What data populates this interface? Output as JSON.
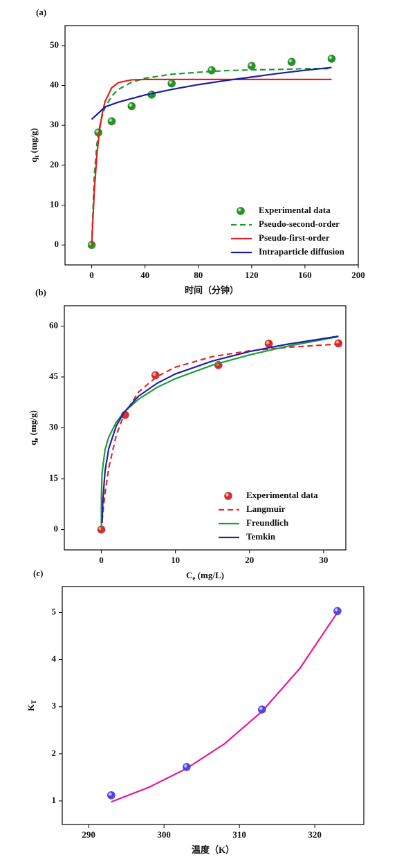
{
  "chart_data": [
    {
      "type": "line",
      "panel_label": "(a)",
      "xlabel": "时间（分钟）",
      "ylabel": {
        "main": "q",
        "sub": "t",
        "rest": " (mg/g)"
      },
      "xlim": [
        -20,
        200
      ],
      "xticks": [
        0,
        40,
        80,
        120,
        160,
        200
      ],
      "ylim": [
        -5,
        55
      ],
      "yticks": [
        0,
        10,
        20,
        30,
        40,
        50
      ],
      "legend": "lower right",
      "series": [
        {
          "name": "Experimental data",
          "color": "#1a8a1a",
          "style": "markers",
          "x": [
            0,
            5,
            15,
            30,
            45,
            60,
            90,
            120,
            150,
            180
          ],
          "values": [
            0,
            28.2,
            31,
            34.8,
            37.7,
            40.5,
            43.8,
            44.9,
            45.9,
            46.7
          ]
        },
        {
          "name": "Pseudo-second-order",
          "color": "#1c9a2a",
          "style": "dashed",
          "x": [
            0,
            2,
            4,
            6,
            8,
            10,
            15,
            20,
            30,
            40,
            60,
            80,
            100,
            120,
            140,
            160,
            180
          ],
          "values": [
            0,
            17.7,
            25.4,
            29.7,
            32.5,
            34.4,
            37.3,
            39.0,
            40.8,
            41.8,
            42.8,
            43.3,
            43.7,
            43.9,
            44.0,
            44.2,
            44.2
          ]
        },
        {
          "name": "Pseudo-first-order",
          "color": "#e02020",
          "style": "solid",
          "x": [
            0,
            2,
            4,
            6,
            8,
            10,
            15,
            20,
            30,
            40,
            60,
            80,
            100,
            120,
            140,
            160,
            180
          ],
          "values": [
            0,
            13.7,
            22.9,
            29.0,
            33.1,
            35.9,
            39.4,
            40.7,
            41.4,
            41.5,
            41.5,
            41.5,
            41.5,
            41.5,
            41.5,
            41.5,
            41.5
          ]
        },
        {
          "name": "Intraparticle diffusion",
          "color": "#1a1aa8",
          "style": "solid",
          "x": [
            0,
            10,
            20,
            40,
            60,
            80,
            100,
            120,
            140,
            160,
            180
          ],
          "values": [
            31.5,
            34.6,
            35.8,
            37.6,
            39.0,
            40.2,
            41.2,
            42.1,
            43.0,
            43.8,
            44.5
          ]
        }
      ]
    },
    {
      "type": "line",
      "panel_label": "(b)",
      "xlabel": {
        "main": "C",
        "sub": "e",
        "rest": " (mg/L)"
      },
      "ylabel": {
        "main": "q",
        "sub": "e",
        "rest": " (mg/g)"
      },
      "xlim": [
        -5,
        33
      ],
      "xticks": [
        0,
        10,
        20,
        30
      ],
      "ylim": [
        -6,
        66
      ],
      "yticks": [
        0,
        15,
        30,
        45,
        60
      ],
      "legend": "lower right",
      "series": [
        {
          "name": "Experimental data",
          "color": "#d42020",
          "style": "markers",
          "x": [
            0,
            3.2,
            7.3,
            15.8,
            22.6,
            32
          ],
          "values": [
            0,
            33.8,
            45.5,
            48.5,
            54.8,
            54.9
          ]
        },
        {
          "name": "Langmuir",
          "color": "#e02828",
          "style": "dashed",
          "x": [
            0.1,
            0.3,
            0.5,
            1,
            2,
            3,
            5,
            7.5,
            10,
            15,
            20,
            25,
            32
          ],
          "values": [
            2.5,
            7.0,
            10.7,
            18.2,
            27.7,
            33.6,
            40.5,
            45.1,
            47.9,
            51.0,
            52.7,
            53.7,
            54.7
          ]
        },
        {
          "name": "Freundlich",
          "color": "#1aa032",
          "style": "solid",
          "x": [
            0,
            0.001,
            0.01,
            0.1,
            0.5,
            1,
            2,
            3,
            5,
            7.5,
            10,
            15,
            20,
            25,
            32
          ],
          "values": [
            0,
            6.3,
            10.3,
            16.8,
            23.6,
            27.3,
            31.6,
            34.5,
            38.4,
            41.9,
            44.5,
            48.5,
            51.5,
            54.0,
            56.9
          ]
        },
        {
          "name": "Temkin",
          "color": "#2020b0",
          "style": "solid",
          "x": [
            0.1,
            0.2,
            0.5,
            1,
            2,
            3,
            5,
            7.5,
            10,
            15,
            20,
            25,
            32
          ],
          "values": [
            1.9,
            8.5,
            17.3,
            23.9,
            30.5,
            34.4,
            39.3,
            43.1,
            45.9,
            49.7,
            52.5,
            54.6,
            57.0
          ]
        }
      ]
    },
    {
      "type": "line",
      "panel_label": "(c)",
      "xlabel": "温度（K）",
      "ylabel": {
        "main": "K",
        "sub": "T"
      },
      "xlim": [
        286.5,
        326.5
      ],
      "xticks": [
        290,
        300,
        310,
        320
      ],
      "ylim": [
        0.5,
        5.55
      ],
      "yticks": [
        1,
        2,
        3,
        4,
        5
      ],
      "series": [
        {
          "color": "#e8169c",
          "style": "solid",
          "x": [
            293,
            298,
            303,
            308,
            313,
            318,
            323
          ],
          "values": [
            0.98,
            1.29,
            1.69,
            2.21,
            2.9,
            3.81,
            5.0
          ]
        },
        {
          "color": "#4b3be0",
          "style": "markers",
          "x": [
            293,
            303,
            313,
            323
          ],
          "values": [
            1.12,
            1.72,
            2.94,
            5.03
          ]
        }
      ]
    }
  ]
}
